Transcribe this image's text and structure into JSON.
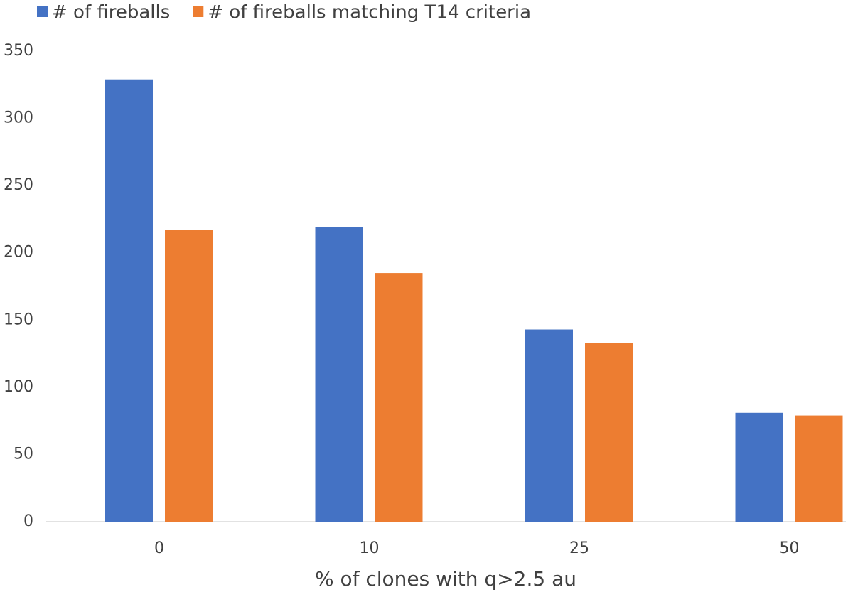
{
  "chart_data": {
    "type": "bar",
    "x_label": "% of clones with q>2.5 au",
    "categories": [
      "0",
      "10",
      "25",
      "50"
    ],
    "series": [
      {
        "name": "# of fireballs",
        "color": "#4472c4",
        "values": [
          329,
          219,
          143,
          81
        ]
      },
      {
        "name": "# of fireballs matching T14 criteria",
        "color": "#ed7d31",
        "values": [
          217,
          185,
          133,
          79
        ]
      }
    ],
    "ylim": [
      0,
      350
    ],
    "yticks": [
      0,
      50,
      100,
      150,
      200,
      250,
      300,
      350
    ],
    "grid": false,
    "legend": "top-left"
  }
}
